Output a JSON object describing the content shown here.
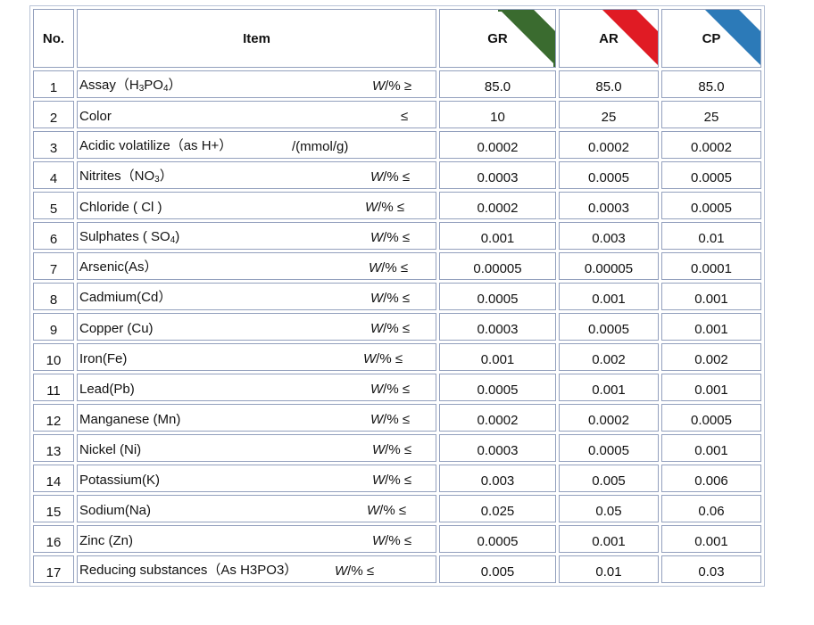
{
  "headers": {
    "no": "No.",
    "item": "Item",
    "grades": [
      {
        "label": "GR",
        "color": "#3a6b2f"
      },
      {
        "label": "AR",
        "color": "#e01b24"
      },
      {
        "label": "CP",
        "color": "#2c7ab8"
      }
    ]
  },
  "rows": [
    {
      "no": "1",
      "name_pre": "Assay（H",
      "name_sub1": "3",
      "name_mid": "PO",
      "name_sub2": "4",
      "name_post": "）",
      "unit_w": "W",
      "unit_rest": "/% ≥",
      "unit_x": 330,
      "gr": "85.0",
      "ar": "85.0",
      "cp": "85.0"
    },
    {
      "no": "2",
      "name_pre": "Color",
      "unit_w": "",
      "unit_rest": "≤",
      "unit_x": 362,
      "gr": "10",
      "ar": "25",
      "cp": "25"
    },
    {
      "no": "3",
      "name_pre": "Acidic volatilize（as H+）",
      "unit_w": "",
      "unit_rest": "/(mmol/g)",
      "unit_x": 240,
      "gr": "0.0002",
      "ar": "0.0002",
      "cp": "0.0002"
    },
    {
      "no": "4",
      "name_pre": "Nitrites（NO",
      "name_sub1": "3",
      "name_post": "）",
      "unit_w": "W",
      "unit_rest": "/% ≤",
      "unit_x": 328,
      "gr": "0.0003",
      "ar": "0.0005",
      "cp": "0.0005"
    },
    {
      "no": "5",
      "name_pre": "Chloride ( Cl )",
      "unit_w": "W",
      "unit_rest": "/% ≤",
      "unit_x": 322,
      "gr": "0.0002",
      "ar": "0.0003",
      "cp": "0.0005"
    },
    {
      "no": "6",
      "name_pre": "Sulphates ( SO",
      "name_sub1": "4",
      "name_post": ")",
      "unit_w": "W",
      "unit_rest": "/% ≤",
      "unit_x": 328,
      "gr": "0.001",
      "ar": "0.003",
      "cp": "0.01"
    },
    {
      "no": "7",
      "name_pre": "Arsenic(As）",
      "unit_w": "W",
      "unit_rest": "/% ≤",
      "unit_x": 326,
      "gr": "0.00005",
      "ar": "0.00005",
      "cp": "0.0001"
    },
    {
      "no": "8",
      "name_pre": "Cadmium(Cd）",
      "unit_w": "W",
      "unit_rest": "/% ≤",
      "unit_x": 328,
      "gr": "0.0005",
      "ar": "0.001",
      "cp": "0.001"
    },
    {
      "no": "9",
      "name_pre": "Copper (Cu)",
      "unit_w": "W",
      "unit_rest": "/% ≤",
      "unit_x": 328,
      "gr": "0.0003",
      "ar": "0.0005",
      "cp": "0.001"
    },
    {
      "no": "10",
      "name_pre": "Iron(Fe)",
      "unit_w": "W",
      "unit_rest": "/% ≤",
      "unit_x": 320,
      "gr": "0.001",
      "ar": "0.002",
      "cp": "0.002"
    },
    {
      "no": "11",
      "name_pre": "Lead(Pb)",
      "unit_w": "W",
      "unit_rest": "/% ≤",
      "unit_x": 328,
      "gr": "0.0005",
      "ar": "0.001",
      "cp": "0.001"
    },
    {
      "no": "12",
      "name_pre": "Manganese (Mn)",
      "unit_w": "W",
      "unit_rest": "/% ≤",
      "unit_x": 328,
      "gr": "0.0002",
      "ar": "0.0002",
      "cp": "0.0005"
    },
    {
      "no": "13",
      "name_pre": "Nickel (Ni)",
      "unit_w": "W",
      "unit_rest": "/% ≤",
      "unit_x": 330,
      "gr": "0.0003",
      "ar": "0.0005",
      "cp": "0.001"
    },
    {
      "no": "14",
      "name_pre": "Potassium(K)",
      "unit_w": "W",
      "unit_rest": "/% ≤",
      "unit_x": 330,
      "gr": "0.003",
      "ar": "0.005",
      "cp": "0.006"
    },
    {
      "no": "15",
      "name_pre": "Sodium(Na)",
      "unit_w": "W",
      "unit_rest": "/% ≤",
      "unit_x": 324,
      "gr": "0.025",
      "ar": "0.05",
      "cp": "0.06"
    },
    {
      "no": "16",
      "name_pre": "Zinc (Zn)",
      "unit_w": "W",
      "unit_rest": "/% ≤",
      "unit_x": 330,
      "gr": "0.0005",
      "ar": "0.001",
      "cp": "0.001"
    },
    {
      "no": "17",
      "name_pre": "Reducing substances（As H3PO3）",
      "unit_w": "W",
      "unit_rest": "/% ≤",
      "unit_x": 288,
      "gr": "0.005",
      "ar": "0.01",
      "cp": "0.03"
    }
  ]
}
